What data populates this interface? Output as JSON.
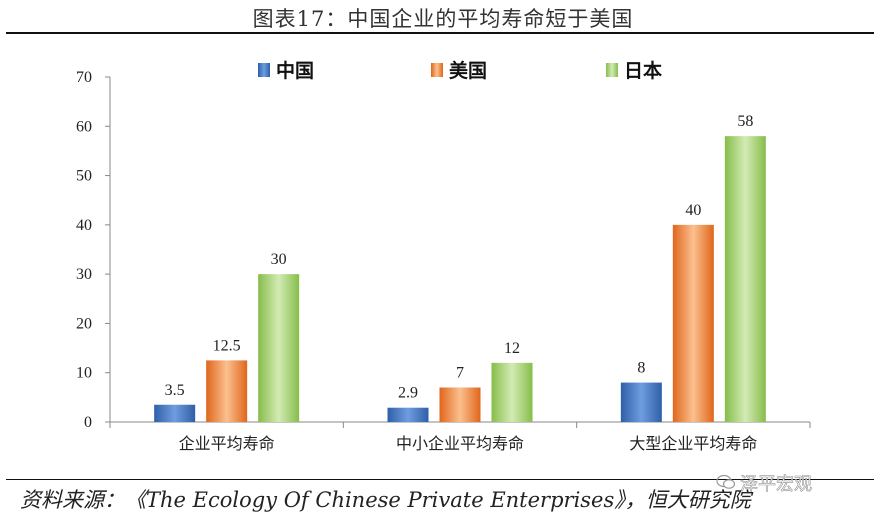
{
  "title": "图表17：中国企业的平均寿命短于美国",
  "source": "资料来源：《The Ecology Of Chinese Private Enterprises》，恒大研究院",
  "watermark": "泽平宏观",
  "colors": {
    "中国": "#4a7cc4",
    "美国": "#f0843a",
    "日本": "#9ccc5e"
  },
  "chart_data": {
    "type": "bar",
    "categories": [
      "企业平均寿命",
      "中小企业平均寿命",
      "大型企业平均寿命"
    ],
    "series": [
      {
        "name": "中国",
        "values": [
          3.5,
          2.9,
          8
        ],
        "labels": [
          "3.5",
          "2.9",
          "8"
        ]
      },
      {
        "name": "美国",
        "values": [
          12.5,
          7,
          40
        ],
        "labels": [
          "12.5",
          "7",
          "40"
        ]
      },
      {
        "name": "日本",
        "values": [
          30,
          12,
          58
        ],
        "labels": [
          "30",
          "12",
          "58"
        ]
      }
    ],
    "ylim": [
      0,
      70
    ],
    "yticks": [
      0,
      10,
      20,
      30,
      40,
      50,
      60,
      70
    ],
    "legend": "top-center",
    "grid": false
  }
}
